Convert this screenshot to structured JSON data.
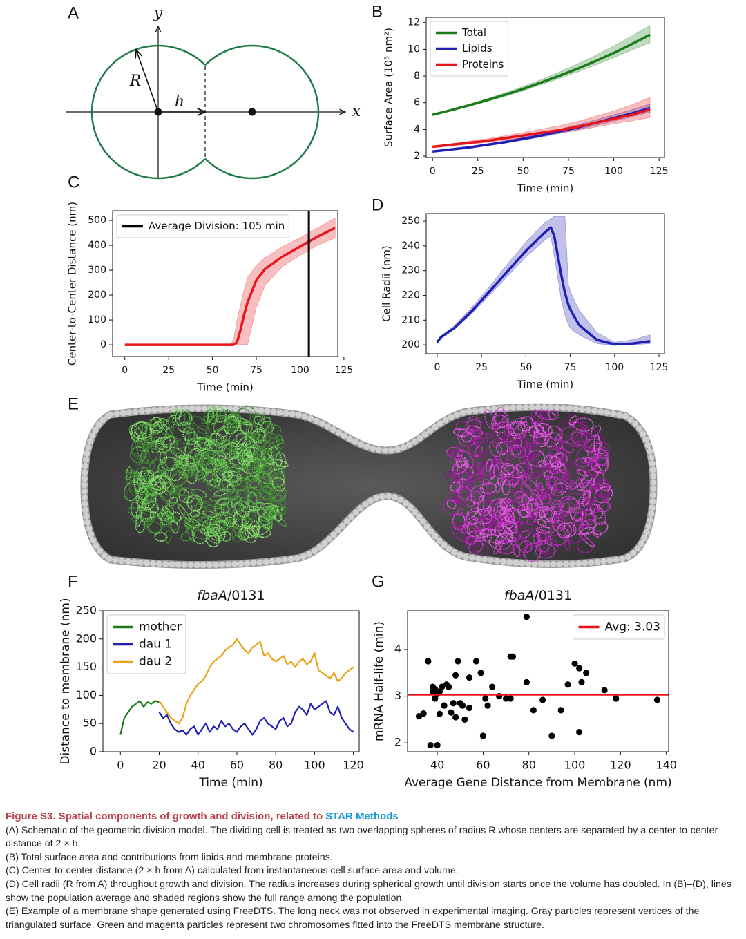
{
  "panel_labels": [
    "A",
    "B",
    "C",
    "D",
    "E",
    "F",
    "G"
  ],
  "diagram": {
    "y_label": "y",
    "x_label": "x",
    "r_label": "R",
    "h_label": "h"
  },
  "chart_data": [
    {
      "type": "line",
      "x_label": "Time (min)",
      "y_label": "Surface Area (10⁵ nm²)",
      "x": [
        0,
        10,
        20,
        30,
        40,
        50,
        60,
        70,
        80,
        90,
        100,
        110,
        120
      ],
      "series": [
        {
          "name": "Total",
          "color": "#1a7a1a",
          "values": [
            5.1,
            5.44,
            5.8,
            6.19,
            6.6,
            7.04,
            7.52,
            8.02,
            8.55,
            9.12,
            9.73,
            10.4,
            11.1
          ],
          "lower": [
            5.05,
            5.38,
            5.72,
            6.09,
            6.48,
            6.9,
            7.35,
            7.82,
            8.3,
            8.83,
            9.38,
            9.95,
            10.5
          ],
          "upper": [
            5.15,
            5.5,
            5.88,
            6.3,
            6.74,
            7.22,
            7.74,
            8.3,
            8.9,
            9.55,
            10.25,
            11.0,
            11.8
          ]
        },
        {
          "name": "Lipids",
          "color": "#1f1fb4",
          "values": [
            2.35,
            2.5,
            2.65,
            2.85,
            3.05,
            3.3,
            3.55,
            3.85,
            4.15,
            4.5,
            4.85,
            5.2,
            5.6
          ],
          "lower": [
            2.3,
            2.45,
            2.6,
            2.78,
            2.97,
            3.2,
            3.43,
            3.7,
            3.98,
            4.3,
            4.62,
            4.95,
            5.3
          ],
          "upper": [
            2.4,
            2.56,
            2.72,
            2.93,
            3.15,
            3.42,
            3.7,
            4.02,
            4.35,
            4.72,
            5.1,
            5.48,
            5.9
          ]
        },
        {
          "name": "Proteins",
          "color": "#e8141a",
          "values": [
            2.7,
            2.85,
            3.0,
            3.15,
            3.35,
            3.55,
            3.75,
            3.95,
            4.2,
            4.5,
            4.8,
            5.1,
            5.5
          ],
          "lower": [
            2.65,
            2.78,
            2.9,
            3.03,
            3.2,
            3.37,
            3.55,
            3.72,
            3.94,
            4.18,
            4.43,
            4.65,
            4.9
          ],
          "upper": [
            2.75,
            2.93,
            3.12,
            3.3,
            3.53,
            3.77,
            4.02,
            4.28,
            4.6,
            4.98,
            5.38,
            5.85,
            6.4
          ]
        }
      ],
      "xlim": [
        -3.5,
        128
      ],
      "ylim": [
        1.9,
        12.4
      ],
      "xticks": [
        0,
        25,
        50,
        75,
        100,
        125
      ],
      "yticks": [
        2,
        4,
        6,
        8,
        10,
        12
      ],
      "legend": "upper left"
    },
    {
      "type": "line",
      "x_label": "Time (min)",
      "y_label": "Center-to-Center Distance (nm)",
      "x": [
        0,
        10,
        20,
        30,
        40,
        50,
        60,
        62,
        64,
        66,
        68,
        70,
        75,
        80,
        90,
        100,
        110,
        120
      ],
      "series": [
        {
          "color": "#e8141a",
          "values": [
            0,
            0,
            0,
            0,
            0,
            0,
            0,
            0,
            10,
            60,
            120,
            170,
            260,
            305,
            355,
            395,
            435,
            470
          ],
          "lower": [
            0,
            0,
            0,
            0,
            0,
            0,
            0,
            0,
            0,
            0,
            0,
            0,
            150,
            240,
            315,
            360,
            400,
            430
          ],
          "upper": [
            0,
            0,
            0,
            0,
            0,
            0,
            0,
            20,
            100,
            160,
            220,
            270,
            320,
            350,
            395,
            430,
            470,
            510
          ]
        }
      ],
      "vlines": [
        {
          "value": 105,
          "label": "Average Division: 105 min",
          "color": "#000000"
        }
      ],
      "xlim": [
        -7,
        121.5
      ],
      "ylim": [
        -47,
        539
      ],
      "xticks": [
        0,
        25,
        50,
        75,
        100,
        125
      ],
      "yticks": [
        0,
        100,
        200,
        300,
        400,
        500
      ],
      "legend": "upper left"
    },
    {
      "type": "line",
      "x_label": "Time (min)",
      "y_label": "Cell Radii (nm)",
      "x": [
        0,
        2,
        10,
        20,
        30,
        40,
        50,
        60,
        64,
        66,
        70,
        72,
        74,
        76,
        80,
        90,
        100,
        110,
        120
      ],
      "series": [
        {
          "color": "#1f1fb4",
          "values": [
            201,
            203,
            207,
            214,
            222,
            230,
            238,
            245,
            247.5,
            244,
            228,
            221,
            216,
            213,
            208,
            202,
            200.2,
            200.5,
            201.5
          ],
          "lower": [
            200.5,
            202.5,
            206.5,
            213,
            220.5,
            228,
            235.5,
            242,
            244,
            236,
            218,
            212,
            208,
            206,
            204,
            200.5,
            199.8,
            200,
            200.5
          ],
          "upper": [
            201.5,
            203.5,
            208,
            215.5,
            224,
            233,
            241.5,
            249,
            251,
            252,
            252,
            252,
            224,
            220,
            214,
            205,
            201,
            202,
            204
          ]
        }
      ],
      "xlim": [
        -6.2,
        128.1
      ],
      "ylim": [
        196.4,
        253.1
      ],
      "xticks": [
        0,
        25,
        50,
        75,
        100,
        125
      ],
      "yticks": [
        200,
        210,
        220,
        230,
        240,
        250
      ]
    },
    {
      "type": "line",
      "title": [
        "fbaA",
        "/0131"
      ],
      "x_label": "Time (min)",
      "y_label": "Distance to membrane (nm)",
      "series": [
        {
          "name": "mother",
          "color": "#1a7a1a",
          "x": [
            0,
            2,
            4,
            6,
            8,
            10,
            12,
            14,
            16,
            18,
            20
          ],
          "values": [
            30,
            60,
            70,
            80,
            85,
            90,
            80,
            88,
            85,
            90,
            88
          ]
        },
        {
          "name": "dau 1",
          "color": "#1f1fb4",
          "x": [
            20,
            22,
            24,
            26,
            28,
            30,
            32,
            34,
            36,
            38,
            40,
            42,
            44,
            46,
            48,
            50,
            52,
            54,
            56,
            58,
            60,
            62,
            64,
            66,
            68,
            70,
            72,
            74,
            76,
            78,
            80,
            82,
            84,
            86,
            88,
            90,
            92,
            94,
            96,
            98,
            100,
            102,
            104,
            106,
            108,
            110,
            112,
            114,
            116,
            118,
            120
          ],
          "values": [
            70,
            60,
            65,
            50,
            40,
            35,
            38,
            30,
            40,
            45,
            30,
            40,
            50,
            35,
            45,
            40,
            55,
            45,
            50,
            40,
            35,
            45,
            50,
            40,
            30,
            40,
            55,
            60,
            50,
            45,
            40,
            55,
            60,
            45,
            50,
            70,
            80,
            75,
            65,
            85,
            75,
            80,
            85,
            90,
            70,
            65,
            80,
            60,
            50,
            40,
            35
          ]
        },
        {
          "name": "dau 2",
          "color": "#e8a317",
          "x": [
            20,
            22,
            24,
            26,
            28,
            30,
            32,
            34,
            36,
            38,
            40,
            42,
            44,
            46,
            48,
            50,
            52,
            54,
            56,
            58,
            60,
            62,
            64,
            66,
            68,
            70,
            72,
            74,
            76,
            78,
            80,
            82,
            84,
            86,
            88,
            90,
            92,
            94,
            96,
            98,
            100,
            102,
            104,
            106,
            108,
            110,
            112,
            114,
            116,
            118,
            120
          ],
          "values": [
            90,
            80,
            70,
            60,
            55,
            50,
            60,
            85,
            100,
            110,
            120,
            125,
            135,
            150,
            160,
            165,
            170,
            180,
            185,
            190,
            200,
            190,
            180,
            175,
            185,
            190,
            195,
            170,
            175,
            165,
            160,
            165,
            170,
            155,
            160,
            150,
            160,
            165,
            155,
            160,
            175,
            145,
            140,
            135,
            130,
            140,
            125,
            130,
            140,
            145,
            150
          ]
        }
      ],
      "xlim": [
        -9,
        123
      ],
      "ylim": [
        0,
        250
      ],
      "xticks": [
        0,
        20,
        40,
        60,
        80,
        100,
        120
      ],
      "yticks": [
        0,
        50,
        100,
        150,
        200,
        250
      ],
      "legend": "upper left"
    },
    {
      "type": "scatter",
      "title": [
        "fbaA",
        "/0131"
      ],
      "x_label": "Average Gene Distance from Membrane (nm)",
      "y_label": "mRNA Half-life (min)",
      "color": "#000000",
      "x": [
        32,
        34,
        36,
        37,
        38,
        38,
        39,
        39,
        40,
        40,
        41,
        41,
        42,
        43,
        44,
        45,
        46,
        47,
        48,
        48,
        49,
        50,
        51,
        52,
        54,
        54,
        57,
        59,
        60,
        61,
        62,
        64,
        67,
        70,
        72,
        72,
        73,
        79,
        79,
        82,
        86,
        90,
        94,
        97,
        100,
        102,
        102,
        103,
        105,
        113,
        118,
        136
      ],
      "values": [
        2.57,
        2.63,
        3.75,
        1.95,
        3.2,
        3.1,
        2.95,
        3.15,
        1.95,
        3.05,
        2.62,
        3.1,
        3.2,
        2.8,
        3.25,
        3.2,
        2.65,
        2.85,
        3.45,
        2.55,
        3.75,
        2.85,
        2.8,
        2.5,
        2.75,
        3.4,
        3.75,
        3.5,
        2.15,
        2.95,
        2.8,
        3.2,
        3.0,
        2.95,
        2.95,
        3.85,
        3.85,
        4.7,
        3.3,
        2.7,
        2.92,
        2.15,
        2.7,
        3.25,
        3.7,
        3.6,
        2.23,
        3.3,
        3.5,
        3.13,
        2.95,
        2.92
      ],
      "hlines": [
        {
          "value": 3.03,
          "label": "Avg: 3.03",
          "color": "#e8141a"
        }
      ],
      "xlim": [
        27,
        141
      ],
      "ylim": [
        1.81,
        4.83
      ],
      "xticks": [
        40,
        60,
        80,
        100,
        120,
        140
      ],
      "yticks": [
        2,
        3,
        4
      ],
      "legend": "upper right"
    }
  ],
  "caption": {
    "title": "Figure S3. Spatial components of growth and division, related to",
    "link": "STAR Methods",
    "paragraphs": [
      "(A) Schematic of the geometric division model. The dividing cell is treated as two overlapping spheres of radius R whose centers are separated by a center-to-center distance of 2 × h.",
      "(B) Total surface area and contributions from lipids and membrane proteins.",
      "(C) Center-to-center distance (2 × h from A) calculated from instantaneous cell surface area and volume.",
      "(D) Cell radii (R from A) throughout growth and division. The radius increases during spherical growth until division starts once the volume has doubled. In (B)–(D), lines show the population average and shaded regions show the full range among the population.",
      "(E) Example of a membrane shape generated using FreeDTS. The long neck was not observed in experimental imaging. Gray particles represent vertices of the triangulated surface. Green and magenta particles represent two chromosomes fitted into the FreeDTS membrane structure."
    ]
  }
}
